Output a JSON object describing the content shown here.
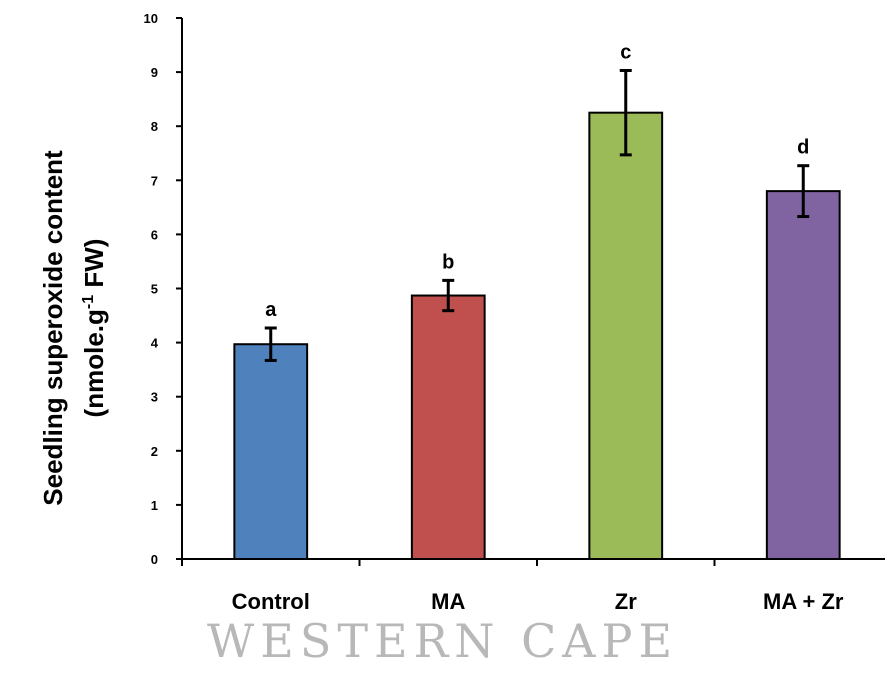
{
  "chart_data": {
    "type": "bar",
    "categories": [
      "Control",
      "MA",
      "Zr",
      "MA + Zr"
    ],
    "values": [
      3.97,
      4.87,
      8.25,
      6.8
    ],
    "errors": [
      0.3,
      0.28,
      0.78,
      0.47
    ],
    "significance_labels": [
      "a",
      "b",
      "c",
      "d"
    ],
    "colors": [
      "#4f81bd",
      "#c0504d",
      "#9bbb59",
      "#8064a2"
    ],
    "ylabel": {
      "line1": "Seedling superoxide content",
      "line2_prefix": "(nmole.g",
      "line2_superscript": "-1",
      "line2_suffix": " FW)"
    },
    "xlabel": "",
    "ylim": [
      0,
      10
    ],
    "yticks": [
      "0",
      "1",
      "2",
      "3",
      "4",
      "5",
      "6",
      "7",
      "8",
      "9",
      "10"
    ],
    "grid": false,
    "legend": "none"
  },
  "watermark": "WESTERN CAPE"
}
